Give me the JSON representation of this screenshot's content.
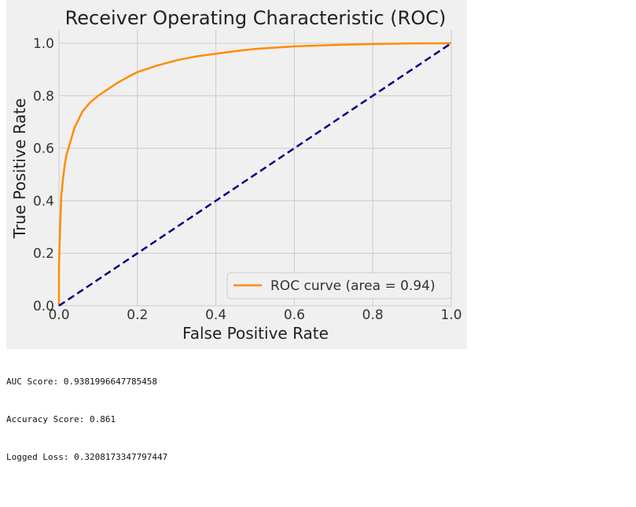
{
  "chart_data": {
    "type": "line",
    "title": "Receiver Operating Characteristic (ROC)",
    "xlabel": "False Positive Rate",
    "ylabel": "True Positive Rate",
    "xlim": [
      0.0,
      1.0
    ],
    "ylim": [
      0.0,
      1.0
    ],
    "xticks": [
      "0.0",
      "0.2",
      "0.4",
      "0.6",
      "0.8",
      "1.0"
    ],
    "yticks": [
      "0.0",
      "0.2",
      "0.4",
      "0.6",
      "0.8",
      "1.0"
    ],
    "grid": true,
    "legend_position": "lower right",
    "series": [
      {
        "name": "ROC curve (area = 0.94)",
        "color": "#ff8c00",
        "style": "solid",
        "x": [
          0.0,
          0.0,
          0.003,
          0.006,
          0.01,
          0.015,
          0.02,
          0.03,
          0.04,
          0.05,
          0.06,
          0.08,
          0.1,
          0.12,
          0.15,
          0.18,
          0.2,
          0.25,
          0.3,
          0.35,
          0.4,
          0.45,
          0.5,
          0.6,
          0.7,
          0.8,
          0.9,
          1.0
        ],
        "y": [
          0.0,
          0.15,
          0.3,
          0.42,
          0.48,
          0.54,
          0.58,
          0.63,
          0.68,
          0.71,
          0.74,
          0.775,
          0.8,
          0.82,
          0.85,
          0.875,
          0.89,
          0.915,
          0.935,
          0.95,
          0.96,
          0.97,
          0.978,
          0.988,
          0.993,
          0.997,
          0.999,
          1.0
        ]
      },
      {
        "name": "",
        "color": "#000080",
        "style": "dashed",
        "x": [
          0.0,
          1.0
        ],
        "y": [
          0.0,
          1.0
        ]
      }
    ]
  },
  "console": {
    "auc_line": "AUC Score: 0.9381996647785458",
    "accuracy_line": "Accuracy Score: 0.861",
    "loss_line": "Logged Loss: 0.3208173347797447"
  }
}
